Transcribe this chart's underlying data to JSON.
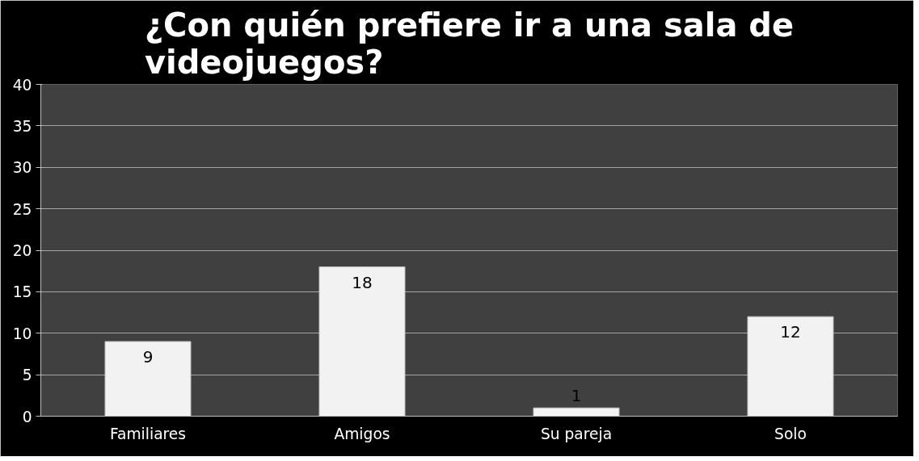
{
  "chart_data": {
    "type": "bar",
    "title": "¿Con quién prefiere ir a una sala de videojuegos?",
    "categories": [
      "Familiares",
      "Amigos",
      "Su pareja",
      "Solo"
    ],
    "values": [
      9,
      18,
      1,
      12
    ],
    "color": "#f2f2f2",
    "ylim": [
      0,
      40
    ],
    "yticks": [
      0,
      5,
      10,
      15,
      20,
      25,
      30,
      35,
      40
    ],
    "grid": "y",
    "data_labels": true
  }
}
